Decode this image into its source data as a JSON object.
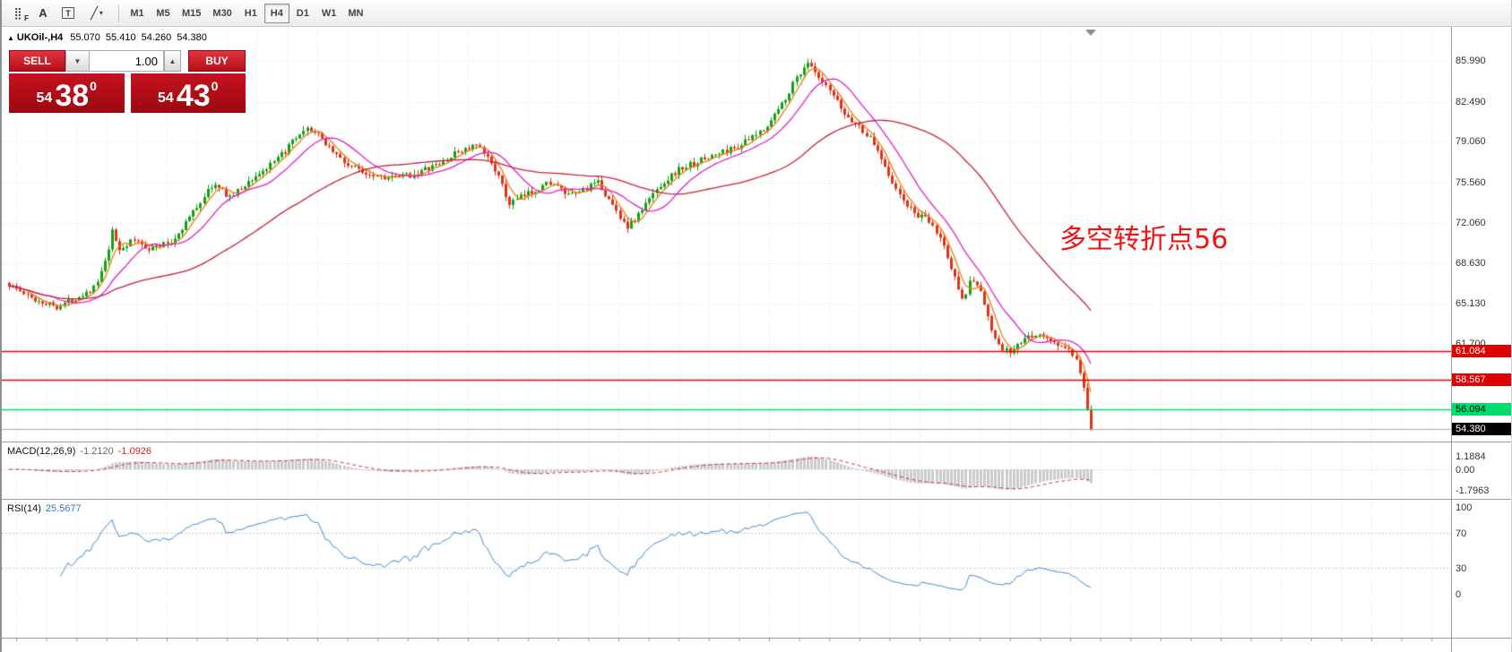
{
  "toolbar": {
    "icons": [
      {
        "name": "dotted-grid-f-icon",
        "glyph": "⣿",
        "sub": "F"
      },
      {
        "name": "text-tool-icon",
        "glyph": "A"
      },
      {
        "name": "label-tool-icon",
        "glyph": "T"
      },
      {
        "name": "line-studies-icon",
        "glyph": "╱",
        "dropdown": "▾"
      }
    ],
    "timeframes": [
      {
        "label": "M1",
        "active": false
      },
      {
        "label": "M5",
        "active": false
      },
      {
        "label": "M15",
        "active": false
      },
      {
        "label": "M30",
        "active": false
      },
      {
        "label": "H1",
        "active": false
      },
      {
        "label": "H4",
        "active": true
      },
      {
        "label": "D1",
        "active": false
      },
      {
        "label": "W1",
        "active": false
      },
      {
        "label": "MN",
        "active": false
      }
    ]
  },
  "chart": {
    "marker": "▲",
    "symbol": "UKOil-,H4",
    "open": "55.070",
    "high": "55.410",
    "low": "54.260",
    "close": "54.380",
    "annotation": "多空转折点56",
    "annotation_color": "#f21212",
    "trade_panel": {
      "sell_label": "SELL",
      "buy_label": "BUY",
      "volume": "1.00",
      "down_glyph": "▼",
      "up_glyph": "▲",
      "bid_small": "54",
      "bid_big": "38",
      "bid_sup": "0",
      "ask_small": "54",
      "ask_big": "43",
      "ask_sup": "0"
    },
    "price_axis": {
      "ticks": [
        {
          "text": "85.990",
          "price": 85.99
        },
        {
          "text": "82.490",
          "price": 82.49
        },
        {
          "text": "79.060",
          "price": 79.06
        },
        {
          "text": "75.560",
          "price": 75.56
        },
        {
          "text": "72.060",
          "price": 72.06
        },
        {
          "text": "68.630",
          "price": 68.63
        },
        {
          "text": "65.130",
          "price": 65.13
        },
        {
          "text": "61.700",
          "price": 61.7
        }
      ]
    },
    "levels": [
      {
        "text": "61.084",
        "price": 61.084,
        "line_color": "#e00000",
        "line_width": 1.6,
        "label_bg": "#e00000",
        "label_fg": "#ffffff"
      },
      {
        "text": "58.567",
        "price": 58.567,
        "line_color": "#e00000",
        "line_width": 1.6,
        "label_bg": "#e00000",
        "label_fg": "#ffffff"
      },
      {
        "text": "56.094",
        "price": 56.094,
        "line_color": "#00db70",
        "line_width": 1.6,
        "label_bg": "#00db70",
        "label_fg": "#000000"
      },
      {
        "text": "54.380",
        "price": 54.38,
        "line_color": "#aaaaaa",
        "line_width": 1,
        "label_bg": "#000000",
        "label_fg": "#ffffff"
      }
    ]
  },
  "macd": {
    "name": "MACD(12,26,9)",
    "value1": "-1.2120",
    "value2": "-1.0926",
    "axis": [
      {
        "text": "1.1884",
        "value": 1.1884
      },
      {
        "text": "0.00",
        "value": 0
      },
      {
        "text": "-1.7963",
        "value": -1.7963
      }
    ],
    "histogram_color": "#cbcbcb",
    "signal_color": "#e03030"
  },
  "rsi": {
    "name": "RSI(14)",
    "value": "25.5677",
    "axis": [
      {
        "text": "100",
        "value": 100
      },
      {
        "text": "70",
        "value": 70
      },
      {
        "text": "30",
        "value": 30
      },
      {
        "text": "0",
        "value": 0
      }
    ],
    "levels": [
      70,
      30
    ],
    "line_color": "#3e86d8"
  },
  "chart_data": {
    "type": "candlestick+indicators",
    "symbol": "UKOil-",
    "timeframe": "H4",
    "visible_price_range": [
      53.3,
      88.9
    ],
    "price_axis_ticks": [
      85.99,
      82.49,
      79.06,
      75.56,
      72.06,
      68.63,
      65.13,
      61.7
    ],
    "horizontal_levels": [
      61.084,
      58.567,
      56.094,
      54.38
    ],
    "candles": 295,
    "up_color": "#0fa314",
    "down_color": "#e03218",
    "price_path_anchors": [
      [
        0.0,
        66.8
      ],
      [
        0.02,
        65.6
      ],
      [
        0.045,
        64.9
      ],
      [
        0.065,
        65.8
      ],
      [
        0.08,
        66.6
      ],
      [
        0.09,
        69.0
      ],
      [
        0.095,
        71.3
      ],
      [
        0.102,
        69.8
      ],
      [
        0.115,
        70.6
      ],
      [
        0.13,
        69.9
      ],
      [
        0.15,
        70.4
      ],
      [
        0.17,
        73.0
      ],
      [
        0.188,
        75.4
      ],
      [
        0.205,
        74.3
      ],
      [
        0.225,
        75.9
      ],
      [
        0.245,
        77.2
      ],
      [
        0.262,
        79.0
      ],
      [
        0.278,
        80.2
      ],
      [
        0.292,
        79.0
      ],
      [
        0.31,
        77.2
      ],
      [
        0.33,
        76.4
      ],
      [
        0.355,
        75.9
      ],
      [
        0.375,
        76.3
      ],
      [
        0.398,
        77.1
      ],
      [
        0.415,
        78.2
      ],
      [
        0.432,
        78.7
      ],
      [
        0.448,
        77.0
      ],
      [
        0.462,
        73.7
      ],
      [
        0.48,
        74.6
      ],
      [
        0.5,
        75.6
      ],
      [
        0.518,
        74.3
      ],
      [
        0.532,
        75.0
      ],
      [
        0.545,
        75.5
      ],
      [
        0.558,
        73.5
      ],
      [
        0.572,
        71.7
      ],
      [
        0.585,
        73.2
      ],
      [
        0.6,
        75.2
      ],
      [
        0.618,
        76.6
      ],
      [
        0.638,
        77.4
      ],
      [
        0.655,
        78.0
      ],
      [
        0.672,
        78.6
      ],
      [
        0.688,
        79.4
      ],
      [
        0.702,
        80.6
      ],
      [
        0.715,
        82.4
      ],
      [
        0.728,
        84.6
      ],
      [
        0.738,
        85.9
      ],
      [
        0.748,
        84.4
      ],
      [
        0.76,
        83.2
      ],
      [
        0.772,
        81.4
      ],
      [
        0.785,
        80.4
      ],
      [
        0.797,
        79.2
      ],
      [
        0.808,
        77.4
      ],
      [
        0.82,
        74.8
      ],
      [
        0.835,
        73.0
      ],
      [
        0.85,
        72.2
      ],
      [
        0.862,
        70.6
      ],
      [
        0.872,
        67.8
      ],
      [
        0.882,
        65.6
      ],
      [
        0.89,
        67.4
      ],
      [
        0.898,
        66.2
      ],
      [
        0.906,
        63.4
      ],
      [
        0.915,
        61.4
      ],
      [
        0.925,
        60.9
      ],
      [
        0.938,
        62.0
      ],
      [
        0.95,
        62.6
      ],
      [
        0.962,
        61.9
      ],
      [
        0.975,
        61.4
      ],
      [
        0.985,
        60.6
      ],
      [
        0.993,
        57.8
      ],
      [
        1.0,
        54.4
      ]
    ],
    "moving_averages": [
      {
        "period": 5,
        "color": "#ee7d14"
      },
      {
        "period": 13,
        "color": "#e020c8"
      },
      {
        "period": 50,
        "color": "#c82035"
      }
    ],
    "macd": {
      "fast": 12,
      "slow": 26,
      "signal": 9,
      "current": [
        -1.212,
        -1.0926
      ],
      "axis_range": [
        1.1884,
        -1.7963
      ]
    },
    "rsi": {
      "period": 14,
      "current": 25.5677,
      "levels": [
        70,
        30
      ],
      "range": [
        0,
        100
      ]
    }
  }
}
